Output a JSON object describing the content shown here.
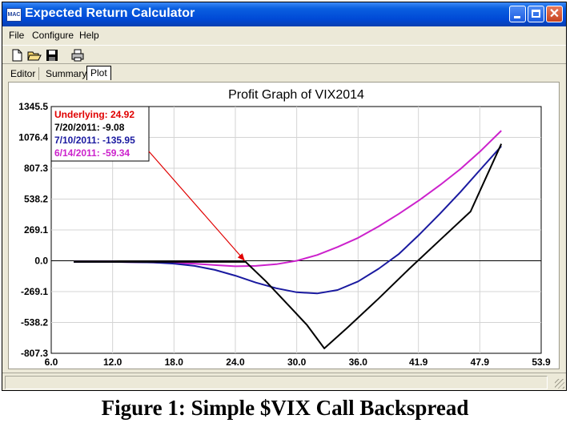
{
  "window": {
    "title": "Expected Return Calculator",
    "icon_label": "MAC"
  },
  "menu": {
    "items": [
      {
        "label": "File"
      },
      {
        "label": "Configure"
      },
      {
        "label": "Help"
      }
    ]
  },
  "toolbar": {
    "icons": [
      "new-file-icon",
      "open-folder-icon",
      "save-disk-icon",
      "print-icon"
    ]
  },
  "tabs": [
    {
      "label": "Editor",
      "active": false
    },
    {
      "label": "Summary",
      "active": false
    },
    {
      "label": "Plot",
      "active": true
    }
  ],
  "chart_data": {
    "type": "line",
    "title": "Profit Graph of VIX2014",
    "x_ticks": [
      "6.0",
      "12.0",
      "18.0",
      "24.0",
      "30.0",
      "36.0",
      "41.9",
      "47.9",
      "53.9"
    ],
    "y_ticks": [
      "1345.5",
      "1076.4",
      "807.3",
      "538.2",
      "269.1",
      "0.0",
      "-269.1",
      "-538.2",
      "-807.3"
    ],
    "xlim": [
      6.0,
      53.9
    ],
    "ylim": [
      -807.3,
      1345.5
    ],
    "grid": true,
    "legend": {
      "underlying": "Underlying: 24.92",
      "entries": [
        "7/20/2011: -9.08",
        "7/10/2011: -135.95",
        "6/14/2011: -59.34"
      ]
    },
    "underlying_value": 24.92,
    "colors": {
      "underlying": "#e00000",
      "series": [
        "#000000",
        "#1a1aa0",
        "#cc22cc"
      ]
    },
    "series": [
      {
        "name": "7/20/2011",
        "x": [
          8.2,
          12,
          18,
          22,
          25,
          27,
          29,
          31,
          32.7,
          35,
          38,
          41,
          44,
          47,
          50
        ],
        "y": [
          -10,
          -10,
          -10,
          -10,
          -10,
          -180,
          -370,
          -560,
          -765,
          -580,
          -330,
          -70,
          180,
          430,
          1020
        ]
      },
      {
        "name": "7/10/2011",
        "x": [
          8.2,
          12,
          16,
          18,
          20,
          22,
          24,
          26,
          28,
          30,
          32,
          34,
          36,
          38,
          40,
          42,
          44,
          46,
          48,
          50
        ],
        "y": [
          -10,
          -10,
          -15,
          -25,
          -45,
          -80,
          -130,
          -190,
          -240,
          -275,
          -285,
          -255,
          -180,
          -70,
          60,
          230,
          410,
          600,
          800,
          1000
        ]
      },
      {
        "name": "6/14/2011",
        "x": [
          8.2,
          12,
          16,
          20,
          22,
          24,
          26,
          28,
          30,
          32,
          34,
          36,
          38,
          40,
          42,
          44,
          46,
          48,
          50
        ],
        "y": [
          -10,
          -10,
          -15,
          -25,
          -38,
          -48,
          -45,
          -30,
          0,
          50,
          120,
          200,
          300,
          410,
          530,
          660,
          800,
          960,
          1135
        ]
      }
    ]
  },
  "caption": "Figure 1: Simple $VIX Call Backspread"
}
